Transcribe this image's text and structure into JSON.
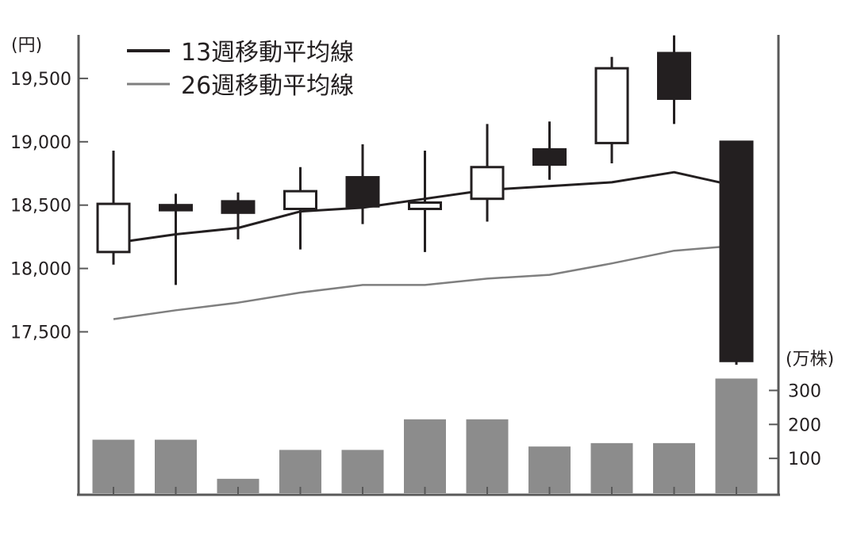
{
  "chart_data": {
    "type": "candlestick",
    "y_unit": "(円)",
    "volume_unit": "(万株)",
    "price_ticks": [
      "19,500",
      "19,000",
      "18,500",
      "18,000",
      "17,500"
    ],
    "price_tick_values": [
      19500,
      19000,
      18500,
      18000,
      17500
    ],
    "volume_ticks": [
      "300",
      "200",
      "100"
    ],
    "volume_tick_values": [
      300,
      200,
      100
    ],
    "price_ylim": [
      17250,
      19850
    ],
    "volume_ylim": [
      0,
      330
    ],
    "legend_position": "top-left",
    "colors": {
      "axis": "#595959",
      "ink": "#231f20",
      "ma26": "#7f7f7f",
      "volume": "#8c8c8c"
    },
    "candles": [
      {
        "open": 18130,
        "high": 18930,
        "low": 18030,
        "close": 18510
      },
      {
        "open": 18500,
        "high": 18590,
        "low": 17870,
        "close": 18460
      },
      {
        "open": 18530,
        "high": 18600,
        "low": 18230,
        "close": 18440
      },
      {
        "open": 18470,
        "high": 18800,
        "low": 18150,
        "close": 18610
      },
      {
        "open": 18720,
        "high": 18980,
        "low": 18350,
        "close": 18490
      },
      {
        "open": 18470,
        "high": 18930,
        "low": 18130,
        "close": 18520
      },
      {
        "open": 18550,
        "high": 19140,
        "low": 18370,
        "close": 18800
      },
      {
        "open": 18940,
        "high": 19160,
        "low": 18700,
        "close": 18820
      },
      {
        "open": 18990,
        "high": 19670,
        "low": 18830,
        "close": 19580
      },
      {
        "open": 19700,
        "high": 19840,
        "low": 19140,
        "close": 19340
      },
      {
        "open": 19000,
        "high": 19000,
        "low": 17240,
        "close": 17270
      }
    ],
    "series": [
      {
        "name": "13週移動平均線",
        "values": [
          18200,
          18270,
          18320,
          18450,
          18480,
          18550,
          18620,
          18650,
          18680,
          18760,
          18650
        ]
      },
      {
        "name": "26週移動平均線",
        "values": [
          17600,
          17670,
          17730,
          17810,
          17870,
          17870,
          17920,
          17950,
          18040,
          18140,
          18180
        ]
      }
    ],
    "volume": [
      155,
      155,
      40,
      125,
      125,
      215,
      215,
      135,
      145,
      145,
      335
    ]
  }
}
